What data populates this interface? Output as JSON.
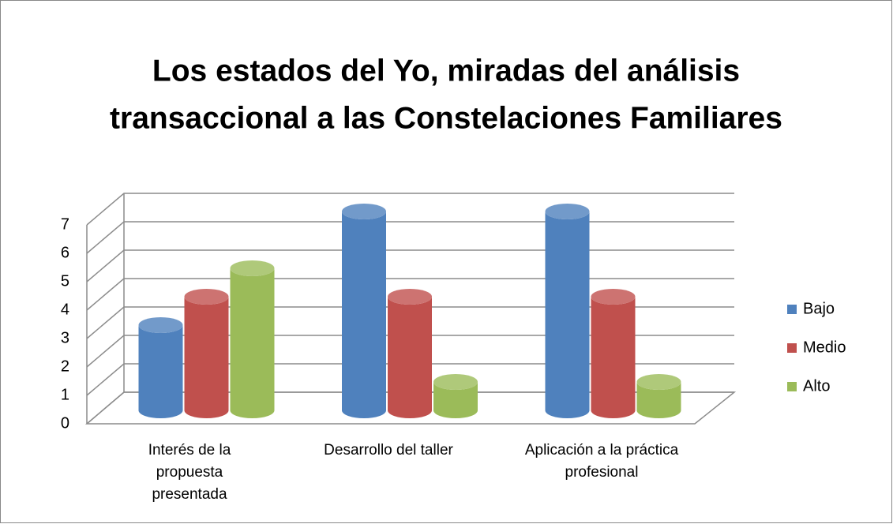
{
  "chart_data": {
    "type": "bar3d",
    "title": [
      "Los estados del Yo, miradas del análisis",
      "transaccional a las Constelaciones Familiares"
    ],
    "categories": [
      "Interés de la propuesta presentada",
      "Desarrollo del taller",
      "Aplicación a la práctica profesional"
    ],
    "series": [
      {
        "name": "Bajo",
        "color": "#4f81bd",
        "values": [
          3,
          7,
          7
        ]
      },
      {
        "name": "Medio",
        "color": "#c0504d",
        "values": [
          4,
          4,
          4
        ]
      },
      {
        "name": "Alto",
        "color": "#9bbb59",
        "values": [
          5,
          1,
          1
        ]
      }
    ],
    "ylim": [
      0,
      7
    ],
    "yticks": [
      0,
      1,
      2,
      3,
      4,
      5,
      6,
      7
    ],
    "grid": true,
    "legend": "right"
  }
}
